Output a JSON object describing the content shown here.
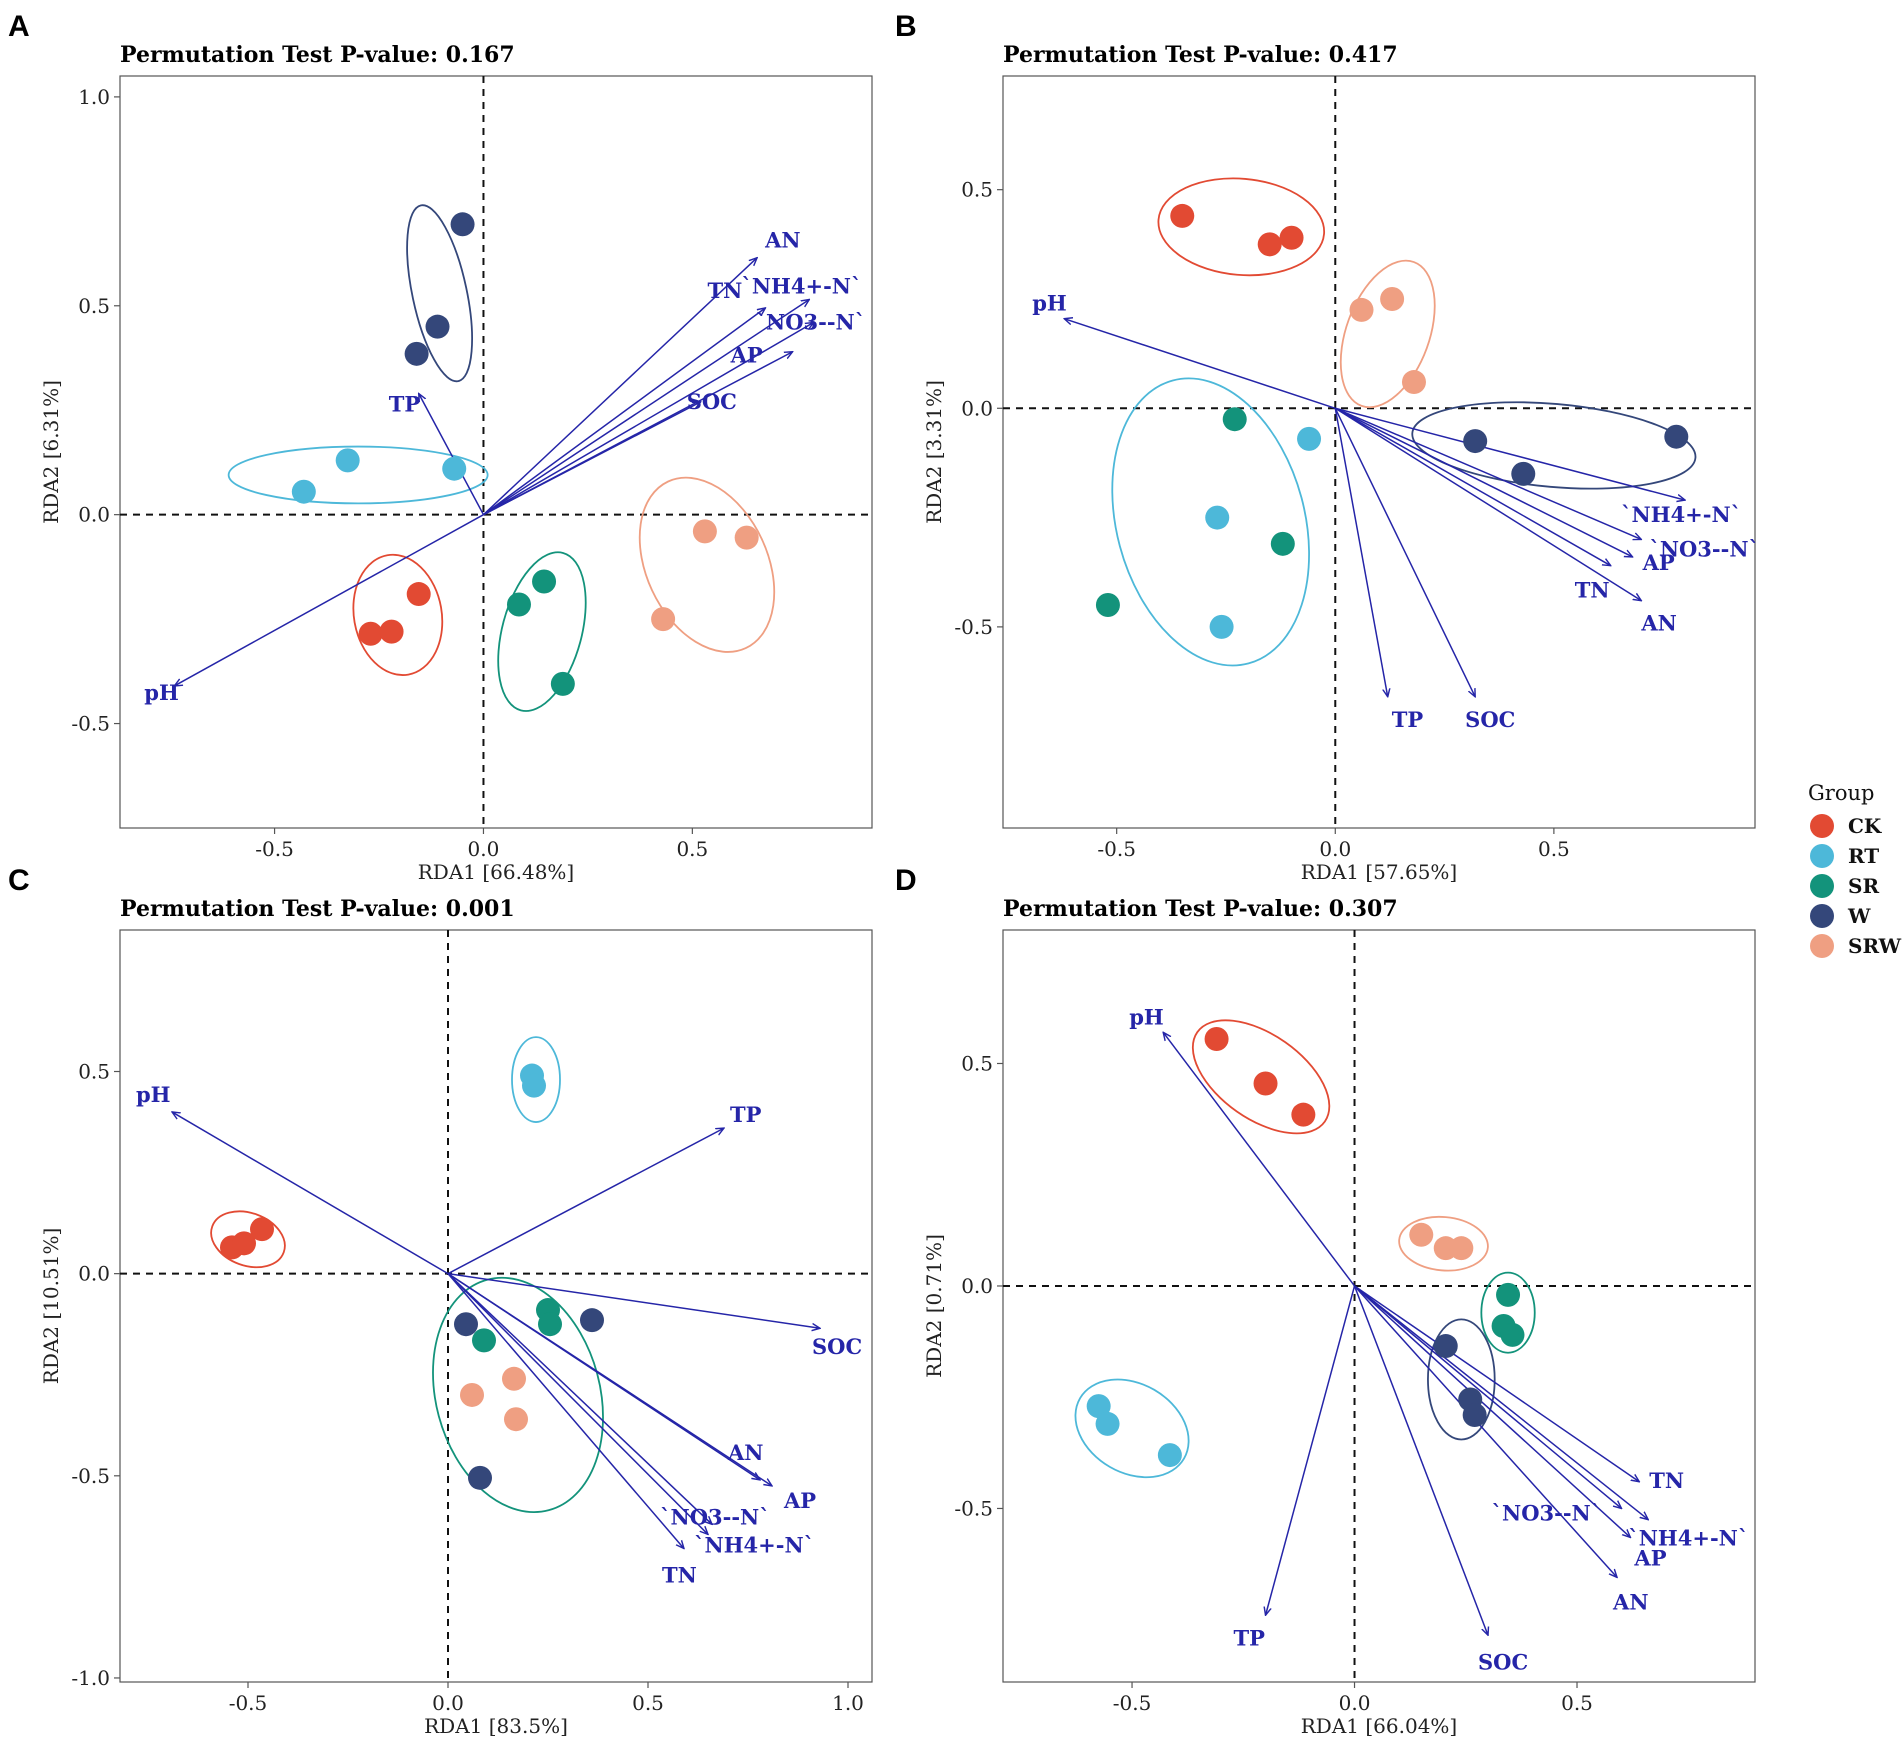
{
  "legend": {
    "title": "Group",
    "items": [
      {
        "label": "CK",
        "color": "#e24a33"
      },
      {
        "label": "RT",
        "color": "#4db8d9"
      },
      {
        "label": "SR",
        "color": "#13937b"
      },
      {
        "label": "W",
        "color": "#34477a"
      },
      {
        "label": "SRW",
        "color": "#ef9f82"
      }
    ]
  },
  "chart_data": [
    {
      "panel": "A",
      "type": "scatter",
      "title": "Permutation Test P-value: 0.167",
      "xlabel": "RDA1 [66.48%]",
      "ylabel": "RDA2 [6.31%]",
      "xlim": [
        -0.87,
        0.93
      ],
      "ylim": [
        -0.75,
        1.05
      ],
      "xticks": [
        -0.5,
        0.0,
        0.5
      ],
      "xtick_labels": [
        "-0.5",
        "0.0",
        "0.5"
      ],
      "yticks": [
        -0.5,
        0.0,
        0.5,
        1.0
      ],
      "ytick_labels": [
        "-0.5",
        "0.0",
        "0.5",
        "1.0"
      ],
      "groups": [
        {
          "name": "CK",
          "points": [
            [
              -0.27,
              -0.285
            ],
            [
              -0.22,
              -0.28
            ],
            [
              -0.155,
              -0.19
            ]
          ],
          "ellipse": {
            "cx": -0.205,
            "cy": -0.24,
            "rx": 0.105,
            "ry": 0.145,
            "angle": 10
          }
        },
        {
          "name": "RT",
          "points": [
            [
              -0.43,
              0.055
            ],
            [
              -0.325,
              0.13
            ],
            [
              -0.07,
              0.11
            ]
          ],
          "ellipse": {
            "cx": -0.3,
            "cy": 0.095,
            "rx": 0.31,
            "ry": 0.068,
            "angle": 0
          }
        },
        {
          "name": "SR",
          "points": [
            [
              0.085,
              -0.215
            ],
            [
              0.145,
              -0.16
            ],
            [
              0.19,
              -0.405
            ]
          ],
          "ellipse": {
            "cx": 0.14,
            "cy": -0.28,
            "rx": 0.095,
            "ry": 0.195,
            "angle": -15
          }
        },
        {
          "name": "W",
          "points": [
            [
              -0.05,
              0.695
            ],
            [
              -0.11,
              0.45
            ],
            [
              -0.16,
              0.385
            ]
          ],
          "ellipse": {
            "cx": -0.105,
            "cy": 0.53,
            "rx": 0.065,
            "ry": 0.215,
            "angle": 12
          }
        },
        {
          "name": "SRW",
          "points": [
            [
              0.53,
              -0.04
            ],
            [
              0.63,
              -0.055
            ],
            [
              0.43,
              -0.25
            ]
          ],
          "ellipse": {
            "cx": 0.535,
            "cy": -0.12,
            "rx": 0.145,
            "ry": 0.22,
            "angle": 25
          }
        }
      ],
      "vectors": [
        {
          "name": "pH",
          "x": -0.74,
          "y": -0.41
        },
        {
          "name": "TP",
          "x": -0.155,
          "y": 0.29
        },
        {
          "name": "AN",
          "x": 0.655,
          "y": 0.615
        },
        {
          "name": "`NH4+-N`",
          "x": 0.78,
          "y": 0.515
        },
        {
          "name": "TN",
          "x": 0.675,
          "y": 0.495
        },
        {
          "name": "`NO3--N`",
          "x": 0.79,
          "y": 0.46
        },
        {
          "name": "AP",
          "x": 0.74,
          "y": 0.39
        },
        {
          "name": "SOC",
          "x": 0.52,
          "y": 0.27
        }
      ]
    },
    {
      "panel": "B",
      "type": "scatter",
      "title": "Permutation Test P-value: 0.417",
      "xlabel": "RDA1 [57.65%]",
      "ylabel": "RDA2 [3.31%]",
      "xlim": [
        -0.76,
        0.96
      ],
      "ylim": [
        -0.96,
        0.76
      ],
      "xticks": [
        -0.5,
        0.0,
        0.5
      ],
      "xtick_labels": [
        "-0.5",
        "0.0",
        "0.5"
      ],
      "yticks": [
        -0.5,
        0.0,
        0.5
      ],
      "ytick_labels": [
        "-0.5",
        "0.0",
        "0.5"
      ],
      "groups": [
        {
          "name": "CK",
          "points": [
            [
              -0.35,
              0.44
            ],
            [
              -0.15,
              0.375
            ],
            [
              -0.1,
              0.39
            ]
          ],
          "ellipse": {
            "cx": -0.215,
            "cy": 0.415,
            "rx": 0.19,
            "ry": 0.11,
            "angle": -5
          }
        },
        {
          "name": "RT",
          "points": [
            [
              -0.27,
              -0.25
            ],
            [
              -0.26,
              -0.5
            ],
            [
              -0.06,
              -0.07
            ]
          ],
          "ellipse": {
            "cx": -0.285,
            "cy": -0.26,
            "rx": 0.215,
            "ry": 0.335,
            "angle": 15
          }
        },
        {
          "name": "SR",
          "points": [
            [
              -0.23,
              -0.025
            ],
            [
              -0.12,
              -0.31
            ],
            [
              -0.52,
              -0.45
            ]
          ],
          "ellipse": {
            "cx": -0.285,
            "cy": -0.26,
            "rx": 0.215,
            "ry": 0.335,
            "angle": 15
          }
        },
        {
          "name": "W",
          "points": [
            [
              0.32,
              -0.075
            ],
            [
              0.43,
              -0.15
            ],
            [
              0.78,
              -0.065
            ]
          ],
          "ellipse": {
            "cx": 0.5,
            "cy": -0.085,
            "rx": 0.325,
            "ry": 0.095,
            "angle": -5
          }
        },
        {
          "name": "SRW",
          "points": [
            [
              0.06,
              0.225
            ],
            [
              0.13,
              0.25
            ],
            [
              0.18,
              0.06
            ]
          ],
          "ellipse": {
            "cx": 0.12,
            "cy": 0.17,
            "rx": 0.095,
            "ry": 0.175,
            "angle": -20
          }
        }
      ],
      "vectors": [
        {
          "name": "pH",
          "x": -0.62,
          "y": 0.205
        },
        {
          "name": "`NH4+-N`",
          "x": 0.8,
          "y": -0.21
        },
        {
          "name": "`NO3--N`",
          "x": 0.7,
          "y": -0.3
        },
        {
          "name": "AP",
          "x": 0.68,
          "y": -0.34
        },
        {
          "name": "TN",
          "x": 0.63,
          "y": -0.36
        },
        {
          "name": "AN",
          "x": 0.7,
          "y": -0.44
        },
        {
          "name": "TP",
          "x": 0.12,
          "y": -0.66
        },
        {
          "name": "SOC",
          "x": 0.32,
          "y": -0.66
        }
      ]
    },
    {
      "panel": "C",
      "type": "scatter",
      "title": "Permutation Test P-value: 0.001",
      "xlabel": "RDA1 [83.5%]",
      "ylabel": "RDA2 [10.51%]",
      "xlim": [
        -0.82,
        1.06
      ],
      "ylim": [
        -1.01,
        0.85
      ],
      "xticks": [
        -0.5,
        0.0,
        0.5,
        1.0
      ],
      "xtick_labels": [
        "-0.5",
        "0.0",
        "0.5",
        "1.0"
      ],
      "yticks": [
        -1.0,
        -0.5,
        0.0,
        0.5
      ],
      "ytick_labels": [
        "-1.0",
        "-0.5",
        "0.0",
        "0.5"
      ],
      "groups": [
        {
          "name": "CK",
          "points": [
            [
              -0.54,
              0.065
            ],
            [
              -0.51,
              0.075
            ],
            [
              -0.465,
              0.11
            ]
          ],
          "ellipse": {
            "cx": -0.5,
            "cy": 0.085,
            "rx": 0.095,
            "ry": 0.065,
            "angle": -20
          }
        },
        {
          "name": "RT",
          "points": [
            [
              0.21,
              0.49
            ],
            [
              0.215,
              0.465
            ]
          ],
          "ellipse": {
            "cx": 0.22,
            "cy": 0.48,
            "rx": 0.06,
            "ry": 0.105,
            "angle": 0
          }
        },
        {
          "name": "SR",
          "points": [
            [
              0.25,
              -0.09
            ],
            [
              0.255,
              -0.125
            ],
            [
              0.09,
              -0.165
            ]
          ],
          "ellipse": {
            "cx": 0.175,
            "cy": -0.3,
            "rx": 0.205,
            "ry": 0.295,
            "angle": 15
          }
        },
        {
          "name": "W",
          "points": [
            [
              0.045,
              -0.125
            ],
            [
              0.36,
              -0.115
            ],
            [
              0.08,
              -0.505
            ]
          ],
          "ellipse": {
            "cx": 0.175,
            "cy": -0.3,
            "rx": 0.205,
            "ry": 0.295,
            "angle": 15
          }
        },
        {
          "name": "SRW",
          "points": [
            [
              0.06,
              -0.3
            ],
            [
              0.165,
              -0.26
            ],
            [
              0.17,
              -0.36
            ]
          ],
          "ellipse": {
            "cx": 0.175,
            "cy": -0.3,
            "rx": 0.205,
            "ry": 0.295,
            "angle": 15
          }
        }
      ],
      "vectors": [
        {
          "name": "pH",
          "x": -0.69,
          "y": 0.4
        },
        {
          "name": "TP",
          "x": 0.69,
          "y": 0.36
        },
        {
          "name": "SOC",
          "x": 0.93,
          "y": -0.135
        },
        {
          "name": "AN",
          "x": 0.78,
          "y": -0.51
        },
        {
          "name": "AP",
          "x": 0.81,
          "y": -0.525
        },
        {
          "name": "`NO3--N`",
          "x": 0.66,
          "y": -0.62
        },
        {
          "name": "`NH4+-N`",
          "x": 0.65,
          "y": -0.645
        },
        {
          "name": "TN",
          "x": 0.59,
          "y": -0.68
        }
      ]
    },
    {
      "panel": "D",
      "type": "scatter",
      "title": "Permutation Test P-value: 0.307",
      "xlabel": "RDA1 [66.04%]",
      "ylabel": "RDA2 [0.71%]",
      "xlim": [
        -0.79,
        0.9
      ],
      "ylim": [
        -0.89,
        0.8
      ],
      "xticks": [
        -0.5,
        0.0,
        0.5
      ],
      "xtick_labels": [
        "-0.5",
        "0.0",
        "0.5"
      ],
      "yticks": [
        -0.5,
        0.0,
        0.5
      ],
      "ytick_labels": [
        "-0.5",
        "0.0",
        "0.5"
      ],
      "groups": [
        {
          "name": "CK",
          "points": [
            [
              -0.31,
              0.555
            ],
            [
              -0.2,
              0.455
            ],
            [
              -0.115,
              0.385
            ]
          ],
          "ellipse": {
            "cx": -0.21,
            "cy": 0.47,
            "rx": 0.175,
            "ry": 0.095,
            "angle": -35
          }
        },
        {
          "name": "RT",
          "points": [
            [
              -0.575,
              -0.27
            ],
            [
              -0.555,
              -0.31
            ],
            [
              -0.415,
              -0.38
            ]
          ],
          "ellipse": {
            "cx": -0.5,
            "cy": -0.32,
            "rx": 0.135,
            "ry": 0.1,
            "angle": -30
          }
        },
        {
          "name": "SR",
          "points": [
            [
              0.345,
              -0.02
            ],
            [
              0.335,
              -0.09
            ],
            [
              0.355,
              -0.11
            ]
          ],
          "ellipse": {
            "cx": 0.345,
            "cy": -0.06,
            "rx": 0.06,
            "ry": 0.09,
            "angle": 0
          }
        },
        {
          "name": "W",
          "points": [
            [
              0.205,
              -0.135
            ],
            [
              0.26,
              -0.255
            ],
            [
              0.27,
              -0.29
            ]
          ],
          "ellipse": {
            "cx": 0.24,
            "cy": -0.21,
            "rx": 0.075,
            "ry": 0.135,
            "angle": 0
          }
        },
        {
          "name": "SRW",
          "points": [
            [
              0.15,
              0.115
            ],
            [
              0.205,
              0.085
            ],
            [
              0.24,
              0.085
            ]
          ],
          "ellipse": {
            "cx": 0.2,
            "cy": 0.095,
            "rx": 0.1,
            "ry": 0.06,
            "angle": -5
          }
        }
      ],
      "vectors": [
        {
          "name": "pH",
          "x": -0.43,
          "y": 0.57
        },
        {
          "name": "TN",
          "x": 0.64,
          "y": -0.44
        },
        {
          "name": "`NO3--N`",
          "x": 0.6,
          "y": -0.5
        },
        {
          "name": "`NH4+-N`",
          "x": 0.66,
          "y": -0.525
        },
        {
          "name": "AP",
          "x": 0.62,
          "y": -0.565
        },
        {
          "name": "AN",
          "x": 0.59,
          "y": -0.655
        },
        {
          "name": "TP",
          "x": -0.2,
          "y": -0.74
        },
        {
          "name": "SOC",
          "x": 0.3,
          "y": -0.785
        }
      ]
    }
  ]
}
